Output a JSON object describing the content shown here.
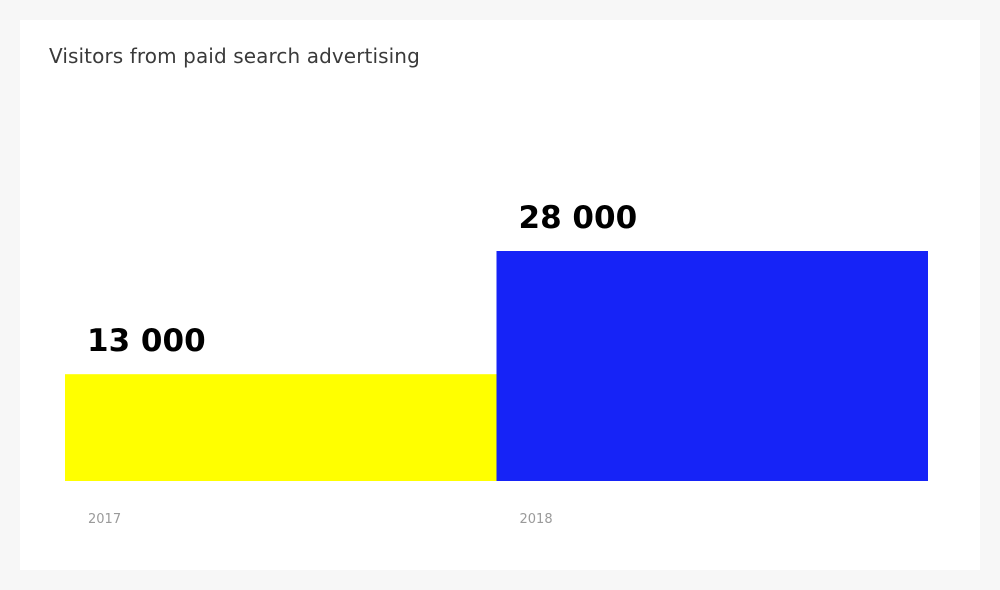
{
  "chart_data": {
    "type": "bar",
    "title": "Visitors from paid search advertising",
    "categories": [
      "2017",
      "2018"
    ],
    "values": [
      13000,
      28000
    ],
    "value_labels": [
      "13 000",
      "28 000"
    ],
    "colors": [
      "#ffff00",
      "#1623f7"
    ],
    "xlabel": "",
    "ylabel": "",
    "grid": false,
    "legend": "none"
  }
}
